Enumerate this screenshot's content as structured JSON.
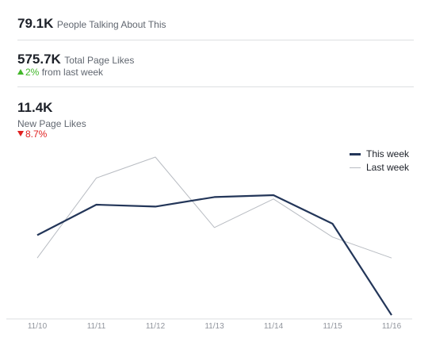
{
  "stats": {
    "talking": {
      "value": "79.1K",
      "label": "People Talking About This"
    },
    "total_likes": {
      "value": "575.7K",
      "label": "Total Page Likes",
      "delta": "2%",
      "delta_suffix": "from last week",
      "direction": "up"
    },
    "new_likes": {
      "value": "11.4K",
      "label": "New Page Likes",
      "delta": "8.7%",
      "direction": "down"
    }
  },
  "colors": {
    "this_week": "#233659",
    "last_week": "#b8bcc2",
    "up": "#42b72a",
    "down": "#e02020"
  },
  "chart_data": {
    "type": "line",
    "x": [
      "11/10",
      "11/11",
      "11/12",
      "11/13",
      "11/14",
      "11/15",
      "11/16"
    ],
    "series": [
      {
        "name": "This week",
        "values": [
          29,
          45,
          44,
          49,
          50,
          35,
          -13
        ]
      },
      {
        "name": "Last week",
        "values": [
          17,
          59,
          70,
          33,
          48,
          28,
          17
        ]
      }
    ],
    "legend": "top-right",
    "grid": false
  }
}
